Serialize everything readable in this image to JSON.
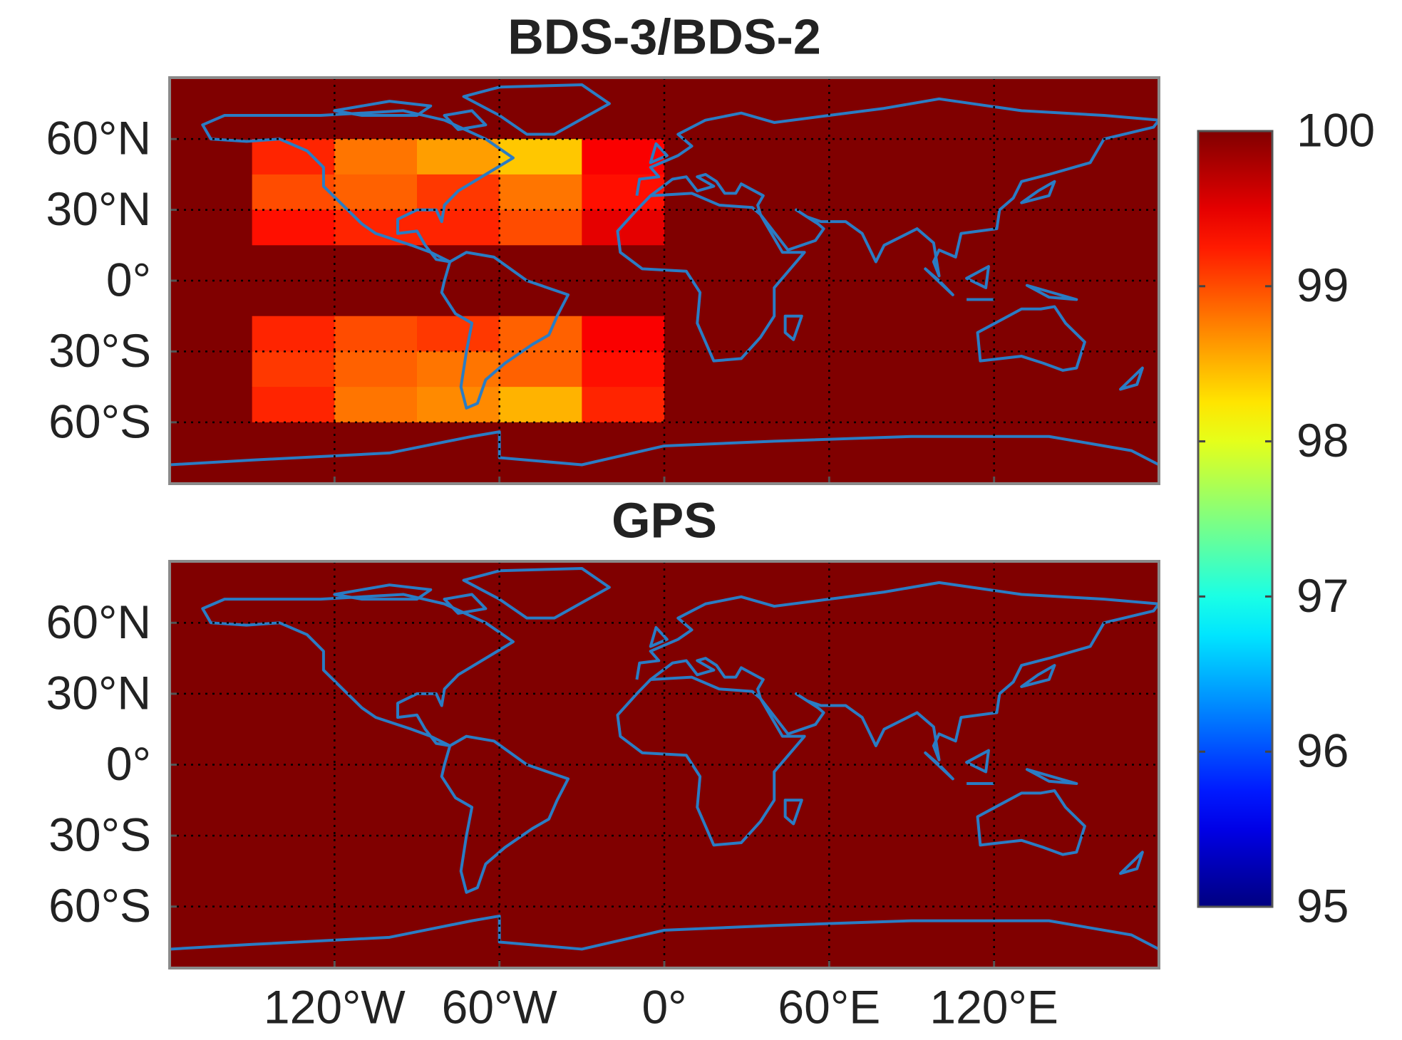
{
  "chart_data": [
    {
      "type": "heatmap",
      "title": "BDS-3/BDS-2",
      "x_edges": [
        -180,
        -150,
        -120,
        -90,
        -60,
        -30,
        0,
        30,
        60,
        90,
        120,
        150,
        180
      ],
      "y_edges": [
        90,
        75,
        60,
        45,
        30,
        15,
        0,
        -15,
        -30,
        -45,
        -60,
        -75,
        -90
      ],
      "z": [
        [
          100,
          100,
          100,
          100,
          100,
          100,
          100,
          100,
          100,
          100,
          100,
          100
        ],
        [
          100,
          100,
          100,
          100,
          100,
          100,
          100,
          100,
          100,
          100,
          100,
          100
        ],
        [
          100,
          99.2,
          98.8,
          98.6,
          98.4,
          99.4,
          100,
          100,
          100,
          100,
          100,
          100
        ],
        [
          100,
          99.0,
          98.9,
          99.1,
          98.8,
          99.3,
          100,
          100,
          100,
          100,
          100,
          100
        ],
        [
          100,
          99.3,
          99.2,
          99.2,
          99.0,
          99.5,
          100,
          100,
          100,
          100,
          100,
          100
        ],
        [
          100,
          100,
          100,
          100,
          100,
          100,
          100,
          100,
          100,
          100,
          100,
          100
        ],
        [
          100,
          100,
          100,
          100,
          100,
          100,
          100,
          100,
          100,
          100,
          100,
          100
        ],
        [
          100,
          99.2,
          99.0,
          99.1,
          98.9,
          99.4,
          100,
          100,
          100,
          100,
          100,
          100
        ],
        [
          100,
          99.1,
          98.9,
          98.8,
          98.9,
          99.3,
          100,
          100,
          100,
          100,
          100,
          100
        ],
        [
          100,
          99.2,
          98.8,
          98.7,
          98.5,
          99.2,
          100,
          100,
          100,
          100,
          100,
          100
        ],
        [
          100,
          100,
          100,
          100,
          100,
          100,
          100,
          100,
          100,
          100,
          100,
          100
        ],
        [
          100,
          100,
          100,
          100,
          100,
          100,
          100,
          100,
          100,
          100,
          100,
          100
        ]
      ],
      "xlim": [
        -180,
        180
      ],
      "ylim": [
        -86,
        86
      ],
      "xticks": [
        -120,
        -60,
        0,
        60,
        120
      ],
      "yticks": [
        {
          "value": 60,
          "label": "60°N"
        },
        {
          "value": 30,
          "label": "30°N"
        },
        {
          "value": 0,
          "label": "0°"
        },
        {
          "value": -30,
          "label": "30°S"
        },
        {
          "value": -60,
          "label": "60°S"
        }
      ],
      "grid": true
    },
    {
      "type": "heatmap",
      "title": "GPS",
      "x_edges": [
        -180,
        -150,
        -120,
        -90,
        -60,
        -30,
        0,
        30,
        60,
        90,
        120,
        150,
        180
      ],
      "y_edges": [
        90,
        75,
        60,
        45,
        30,
        15,
        0,
        -15,
        -30,
        -45,
        -60,
        -75,
        -90
      ],
      "z": [
        [
          100,
          100,
          100,
          100,
          100,
          100,
          100,
          100,
          100,
          100,
          100,
          100
        ],
        [
          100,
          100,
          100,
          100,
          100,
          100,
          100,
          100,
          100,
          100,
          100,
          100
        ],
        [
          100,
          100,
          100,
          100,
          100,
          100,
          100,
          100,
          100,
          100,
          100,
          100
        ],
        [
          100,
          100,
          100,
          100,
          100,
          100,
          100,
          100,
          100,
          100,
          100,
          100
        ],
        [
          100,
          100,
          100,
          100,
          100,
          100,
          100,
          100,
          100,
          100,
          100,
          100
        ],
        [
          100,
          100,
          100,
          100,
          100,
          100,
          100,
          100,
          100,
          100,
          100,
          100
        ],
        [
          100,
          100,
          100,
          100,
          100,
          100,
          100,
          100,
          100,
          100,
          100,
          100
        ],
        [
          100,
          100,
          100,
          100,
          100,
          100,
          100,
          100,
          100,
          100,
          100,
          100
        ],
        [
          100,
          100,
          100,
          100,
          100,
          100,
          100,
          100,
          100,
          100,
          100,
          100
        ],
        [
          100,
          100,
          100,
          100,
          100,
          100,
          100,
          100,
          100,
          100,
          100,
          100
        ],
        [
          100,
          100,
          100,
          100,
          100,
          100,
          100,
          100,
          100,
          100,
          100,
          100
        ],
        [
          100,
          100,
          100,
          100,
          100,
          100,
          100,
          100,
          100,
          100,
          100,
          100
        ]
      ],
      "xlim": [
        -180,
        180
      ],
      "ylim": [
        -86,
        86
      ],
      "xticks": [
        {
          "value": -120,
          "label": "120°W"
        },
        {
          "value": -60,
          "label": "60°W"
        },
        {
          "value": 0,
          "label": "0°"
        },
        {
          "value": 60,
          "label": "60°E"
        },
        {
          "value": 120,
          "label": "120°E"
        }
      ],
      "yticks": [
        {
          "value": 60,
          "label": "60°N"
        },
        {
          "value": 30,
          "label": "30°N"
        },
        {
          "value": 0,
          "label": "0°"
        },
        {
          "value": -30,
          "label": "30°S"
        },
        {
          "value": -60,
          "label": "60°S"
        }
      ],
      "grid": true
    }
  ],
  "colorbar": {
    "colormap": "jet",
    "clim": [
      95,
      100
    ],
    "ticks": [
      95,
      96,
      97,
      98,
      99,
      100
    ]
  }
}
